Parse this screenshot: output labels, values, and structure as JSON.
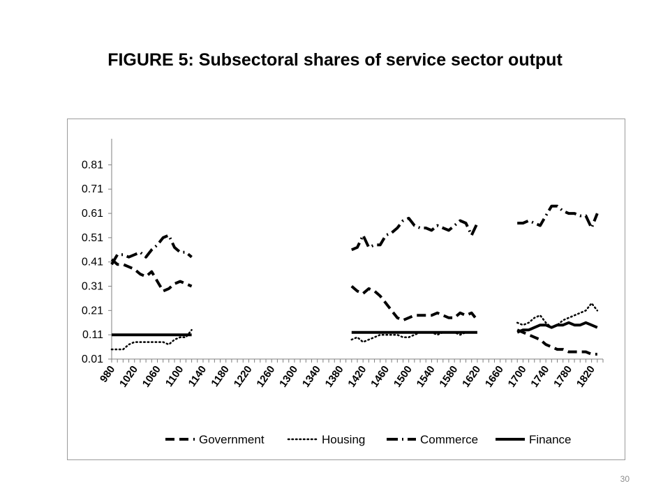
{
  "page": {
    "number": "30"
  },
  "chart_data": {
    "type": "line",
    "title": "FIGURE 5: Subsectoral shares of service sector output",
    "xlabel": "",
    "ylabel": "",
    "x_ticks": [
      "980",
      "1020",
      "1060",
      "1100",
      "1140",
      "1180",
      "1220",
      "1260",
      "1300",
      "1340",
      "1380",
      "1420",
      "1460",
      "1500",
      "1540",
      "1580",
      "1620",
      "1660",
      "1700",
      "1740",
      "1780",
      "1820"
    ],
    "y_ticks": [
      "0.01",
      "0.11",
      "0.21",
      "0.31",
      "0.41",
      "0.51",
      "0.61",
      "0.71",
      "0.81"
    ],
    "xlim": [
      980,
      1840
    ],
    "ylim": [
      0.01,
      0.86
    ],
    "grid": false,
    "legend_position": "bottom",
    "series": [
      {
        "name": "Government",
        "style": "dash",
        "segments": [
          {
            "x": [
              980,
              990,
              1000,
              1010,
              1020,
              1030,
              1040,
              1050,
              1060,
              1070,
              1080,
              1090,
              1100,
              1110,
              1120
            ],
            "y": [
              0.42,
              0.4,
              0.4,
              0.39,
              0.38,
              0.36,
              0.35,
              0.37,
              0.33,
              0.29,
              0.3,
              0.32,
              0.33,
              0.32,
              0.31
            ]
          },
          {
            "x": [
              1400,
              1410,
              1420,
              1430,
              1440,
              1450,
              1460,
              1470,
              1480,
              1490,
              1500,
              1510,
              1520,
              1530,
              1540,
              1550,
              1560,
              1570,
              1580,
              1590,
              1600,
              1610,
              1620
            ],
            "y": [
              0.31,
              0.29,
              0.28,
              0.3,
              0.29,
              0.27,
              0.24,
              0.21,
              0.18,
              0.17,
              0.18,
              0.19,
              0.19,
              0.19,
              0.19,
              0.2,
              0.19,
              0.18,
              0.18,
              0.2,
              0.19,
              0.2,
              0.17
            ]
          },
          {
            "x": [
              1690,
              1700,
              1710,
              1720,
              1730,
              1740,
              1750,
              1760,
              1770,
              1780,
              1790,
              1800,
              1810,
              1820,
              1830
            ],
            "y": [
              0.13,
              0.12,
              0.11,
              0.1,
              0.09,
              0.07,
              0.06,
              0.05,
              0.05,
              0.04,
              0.04,
              0.04,
              0.04,
              0.03,
              0.03
            ]
          }
        ]
      },
      {
        "name": "Housing",
        "style": "dot",
        "segments": [
          {
            "x": [
              980,
              990,
              1000,
              1010,
              1020,
              1030,
              1040,
              1050,
              1060,
              1070,
              1080,
              1090,
              1100,
              1110,
              1120
            ],
            "y": [
              0.05,
              0.05,
              0.05,
              0.07,
              0.08,
              0.08,
              0.08,
              0.08,
              0.08,
              0.08,
              0.07,
              0.09,
              0.1,
              0.1,
              0.13
            ]
          },
          {
            "x": [
              1400,
              1410,
              1420,
              1430,
              1440,
              1450,
              1460,
              1470,
              1480,
              1490,
              1500,
              1510,
              1520,
              1530,
              1540,
              1550,
              1560,
              1570,
              1580,
              1590,
              1600,
              1610,
              1620
            ],
            "y": [
              0.09,
              0.1,
              0.08,
              0.09,
              0.1,
              0.11,
              0.11,
              0.11,
              0.11,
              0.1,
              0.1,
              0.11,
              0.12,
              0.12,
              0.12,
              0.11,
              0.12,
              0.12,
              0.12,
              0.11,
              0.12,
              0.12,
              0.12
            ]
          },
          {
            "x": [
              1690,
              1700,
              1710,
              1720,
              1730,
              1740,
              1750,
              1760,
              1770,
              1780,
              1790,
              1800,
              1810,
              1820,
              1830
            ],
            "y": [
              0.16,
              0.15,
              0.16,
              0.18,
              0.19,
              0.16,
              0.14,
              0.15,
              0.17,
              0.18,
              0.19,
              0.2,
              0.21,
              0.24,
              0.21
            ]
          }
        ]
      },
      {
        "name": "Commerce",
        "style": "dashdot",
        "segments": [
          {
            "x": [
              980,
              990,
              1000,
              1010,
              1020,
              1030,
              1040,
              1050,
              1060,
              1070,
              1080,
              1090,
              1100,
              1110,
              1120
            ],
            "y": [
              0.4,
              0.44,
              0.44,
              0.43,
              0.44,
              0.45,
              0.43,
              0.46,
              0.48,
              0.51,
              0.52,
              0.47,
              0.45,
              0.45,
              0.43
            ]
          },
          {
            "x": [
              1400,
              1410,
              1420,
              1430,
              1440,
              1450,
              1460,
              1470,
              1480,
              1490,
              1500,
              1510,
              1520,
              1530,
              1540,
              1550,
              1560,
              1570,
              1580,
              1590,
              1600,
              1610,
              1620
            ],
            "y": [
              0.46,
              0.47,
              0.52,
              0.47,
              0.48,
              0.48,
              0.52,
              0.53,
              0.55,
              0.58,
              0.59,
              0.56,
              0.55,
              0.55,
              0.54,
              0.56,
              0.55,
              0.54,
              0.56,
              0.58,
              0.57,
              0.52,
              0.57
            ]
          },
          {
            "x": [
              1690,
              1700,
              1710,
              1720,
              1730,
              1740,
              1750,
              1760,
              1770,
              1780,
              1790,
              1800,
              1810,
              1820,
              1830
            ],
            "y": [
              0.57,
              0.57,
              0.58,
              0.57,
              0.56,
              0.6,
              0.64,
              0.64,
              0.62,
              0.61,
              0.61,
              0.6,
              0.6,
              0.55,
              0.61
            ]
          }
        ]
      },
      {
        "name": "Finance",
        "style": "solid",
        "segments": [
          {
            "x": [
              980,
              1120
            ],
            "y": [
              0.11,
              0.11
            ]
          },
          {
            "x": [
              1400,
              1620
            ],
            "y": [
              0.12,
              0.12
            ]
          },
          {
            "x": [
              1690,
              1700,
              1710,
              1720,
              1730,
              1740,
              1750,
              1760,
              1770,
              1780,
              1790,
              1800,
              1810,
              1820,
              1830
            ],
            "y": [
              0.12,
              0.13,
              0.13,
              0.14,
              0.15,
              0.15,
              0.14,
              0.15,
              0.15,
              0.16,
              0.15,
              0.15,
              0.16,
              0.15,
              0.14
            ]
          }
        ]
      }
    ]
  }
}
